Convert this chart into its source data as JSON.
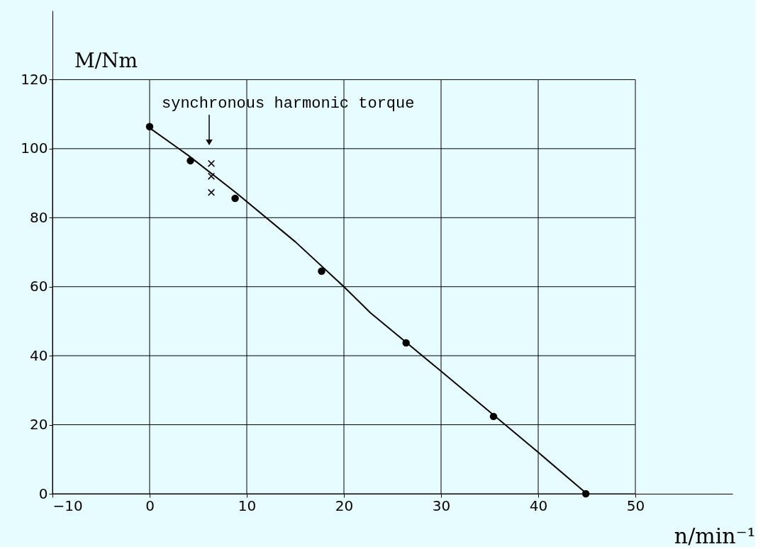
{
  "chart_data": {
    "type": "scatter",
    "xlabel": "n/min⁻¹",
    "ylabel": "M/Nm",
    "xlim": [
      -10,
      60
    ],
    "ylim": [
      0,
      140
    ],
    "xticks": [
      -10,
      0,
      10,
      20,
      30,
      40,
      50
    ],
    "yticks": [
      0,
      20,
      40,
      60,
      80,
      100,
      120
    ],
    "grid": true,
    "annotations": [
      "synchronous harmonic torque"
    ],
    "series": [
      {
        "type": "line",
        "color": "#000000",
        "line_style": "solid",
        "x": [
          0,
          4,
          9,
          15,
          20,
          22.7,
          30,
          40,
          45
        ],
        "values": [
          106,
          98,
          87,
          73,
          60,
          52.5,
          35.5,
          12,
          0
        ]
      },
      {
        "color": "#000000",
        "marker": "circle",
        "x": [
          0,
          4.2,
          8.8,
          17.7,
          26.4,
          35.4,
          44.9
        ],
        "values": [
          106.4,
          96.5,
          85.6,
          64.5,
          43.7,
          22.4,
          0
        ]
      },
      {
        "color": "#000000",
        "marker": "cross",
        "x": [
          6.35,
          6.35,
          6.35
        ],
        "values": [
          95.7,
          92,
          87.3
        ]
      }
    ]
  }
}
